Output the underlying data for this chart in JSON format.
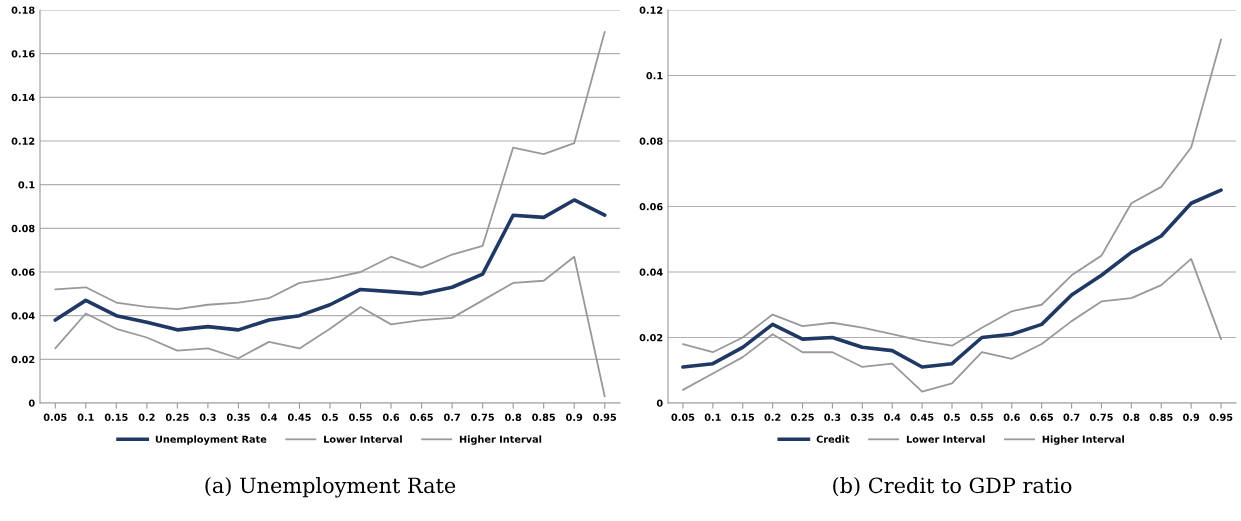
{
  "chart_data": [
    {
      "type": "line",
      "title": "(a) Unemployment Rate",
      "categories": [
        "0.05",
        "0.1",
        "0.15",
        "0.2",
        "0.25",
        "0.3",
        "0.35",
        "0.4",
        "0.45",
        "0.5",
        "0.55",
        "0.6",
        "0.65",
        "0.7",
        "0.75",
        "0.8",
        "0.85",
        "0.9",
        "0.95"
      ],
      "series": [
        {
          "name": "Unemployment Rate",
          "color": "#1f3864",
          "values": [
            0.038,
            0.047,
            0.04,
            0.037,
            0.0335,
            0.035,
            0.0335,
            0.038,
            0.04,
            0.045,
            0.052,
            0.051,
            0.05,
            0.053,
            0.059,
            0.086,
            0.085,
            0.093,
            0.086
          ]
        },
        {
          "name": "Lower Interval",
          "color": "#999999",
          "values": [
            0.025,
            0.041,
            0.034,
            0.03,
            0.024,
            0.025,
            0.0205,
            0.028,
            0.025,
            0.034,
            0.044,
            0.036,
            0.038,
            0.039,
            0.047,
            0.055,
            0.056,
            0.067,
            0.003
          ]
        },
        {
          "name": "Higher Interval",
          "color": "#999999",
          "values": [
            0.052,
            0.053,
            0.046,
            0.044,
            0.043,
            0.045,
            0.046,
            0.048,
            0.055,
            0.057,
            0.06,
            0.067,
            0.062,
            0.068,
            0.072,
            0.117,
            0.114,
            0.119,
            0.17
          ]
        }
      ],
      "ylim": [
        0,
        0.18
      ],
      "yticks": [
        0,
        0.02,
        0.04,
        0.06,
        0.08,
        0.1,
        0.12,
        0.14,
        0.16,
        0.18
      ],
      "grid": "y",
      "legend": "bottom"
    },
    {
      "type": "line",
      "title": "(b) Credit to GDP ratio",
      "categories": [
        "0.05",
        "0.1",
        "0.15",
        "0.2",
        "0.25",
        "0.3",
        "0.35",
        "0.4",
        "0.45",
        "0.5",
        "0.55",
        "0.6",
        "0.65",
        "0.7",
        "0.75",
        "0.8",
        "0.85",
        "0.9",
        "0.95"
      ],
      "series": [
        {
          "name": "Credit",
          "color": "#1f3864",
          "values": [
            0.011,
            0.012,
            0.017,
            0.024,
            0.0195,
            0.02,
            0.017,
            0.016,
            0.011,
            0.012,
            0.02,
            0.021,
            0.024,
            0.033,
            0.039,
            0.046,
            0.051,
            0.061,
            0.065
          ]
        },
        {
          "name": "Lower Interval",
          "color": "#999999",
          "values": [
            0.004,
            0.009,
            0.014,
            0.021,
            0.0155,
            0.0155,
            0.011,
            0.012,
            0.0035,
            0.006,
            0.0155,
            0.0135,
            0.018,
            0.025,
            0.031,
            0.032,
            0.036,
            0.044,
            0.0195
          ]
        },
        {
          "name": "Higher Interval",
          "color": "#999999",
          "values": [
            0.018,
            0.0155,
            0.02,
            0.027,
            0.0235,
            0.0245,
            0.023,
            0.021,
            0.019,
            0.0175,
            0.023,
            0.028,
            0.03,
            0.039,
            0.045,
            0.061,
            0.066,
            0.078,
            0.111
          ]
        }
      ],
      "ylim": [
        0,
        0.12
      ],
      "yticks": [
        0,
        0.02,
        0.04,
        0.06,
        0.08,
        0.1,
        0.12
      ],
      "grid": "y",
      "legend": "bottom"
    }
  ]
}
